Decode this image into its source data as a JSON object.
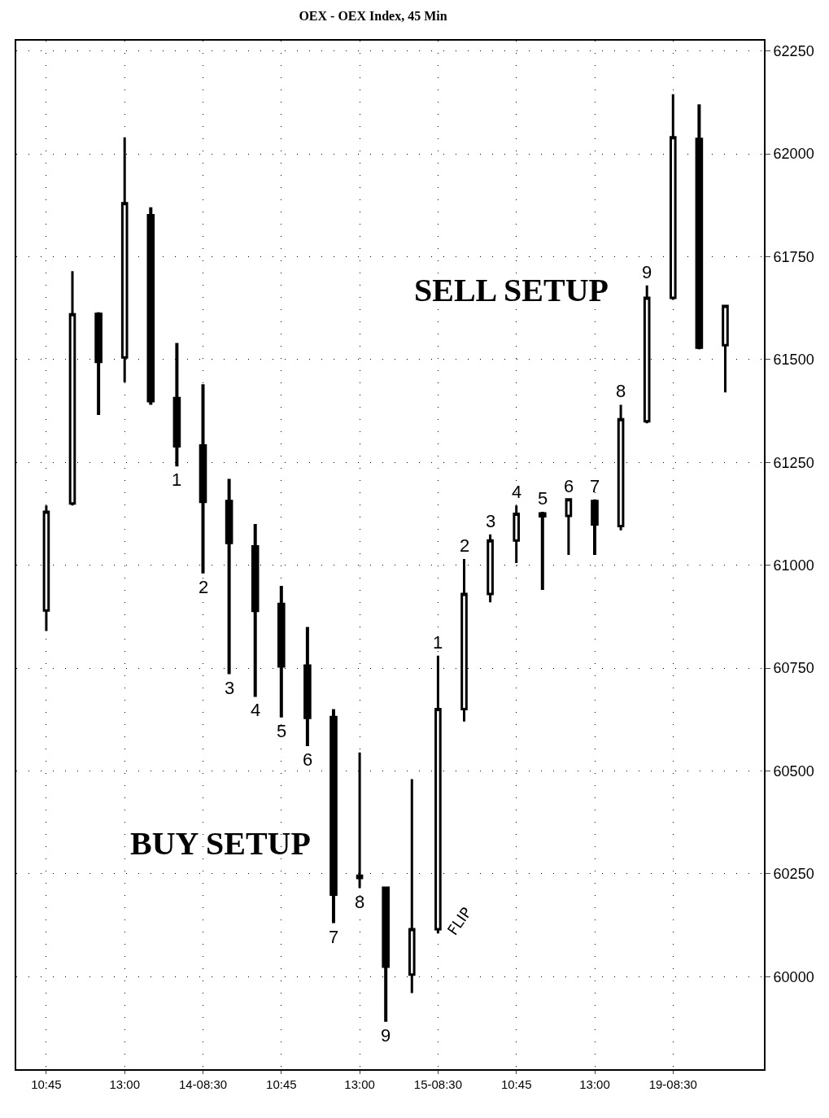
{
  "chart_data": {
    "type": "candlestick",
    "title": "OEX - OEX Index, 45 Min",
    "categories": [
      "10:45",
      null,
      null,
      "13:00",
      null,
      null,
      "14-08:30",
      null,
      null,
      "10:45",
      null,
      null,
      "13:00",
      null,
      null,
      "15-08:30",
      null,
      null,
      "10:45",
      null,
      null,
      "13:00",
      null,
      null,
      "19-08:30",
      null,
      null
    ],
    "ohlc": [
      [
        60890,
        61145,
        60840,
        61130
      ],
      [
        61150,
        61715,
        61145,
        61610
      ],
      [
        61610,
        61615,
        61365,
        61495
      ],
      [
        61505,
        62040,
        61445,
        61880
      ],
      [
        61850,
        61870,
        61390,
        61400
      ],
      [
        61405,
        61540,
        61240,
        61290
      ],
      [
        61290,
        61440,
        60980,
        61155
      ],
      [
        61155,
        61210,
        60735,
        61055
      ],
      [
        61045,
        61100,
        60680,
        60890
      ],
      [
        60905,
        60950,
        60630,
        60755
      ],
      [
        60755,
        60850,
        60560,
        60630
      ],
      [
        60630,
        60650,
        60130,
        60200
      ],
      [
        60240,
        60545,
        60215,
        60245
      ],
      [
        60215,
        60215,
        59890,
        60025
      ],
      [
        60005,
        60480,
        59960,
        60115
      ],
      [
        60115,
        60780,
        60105,
        60650
      ],
      [
        60650,
        61015,
        60620,
        60930
      ],
      [
        60930,
        61075,
        60910,
        61060
      ],
      [
        61060,
        61145,
        61005,
        61125
      ],
      [
        61125,
        61130,
        60940,
        61120
      ],
      [
        61120,
        61160,
        61025,
        61160
      ],
      [
        61155,
        61160,
        61025,
        61100
      ],
      [
        61095,
        61390,
        61085,
        61355
      ],
      [
        61350,
        61680,
        61345,
        61650
      ],
      [
        61650,
        62145,
        61645,
        62040
      ],
      [
        62035,
        62120,
        61525,
        61530
      ],
      [
        61535,
        61630,
        61420,
        61630
      ]
    ],
    "color": "#000000",
    "value_labels": [
      null,
      null,
      null,
      null,
      null,
      "1",
      "2",
      "3",
      "4",
      "5",
      "6",
      "7",
      "8",
      "9",
      null,
      "1",
      "2",
      "3",
      "4",
      "5",
      "6",
      "7",
      "8",
      "9",
      null,
      null,
      null
    ],
    "ylim": [
      59775,
      62275
    ],
    "yticks": [
      60000,
      60250,
      60500,
      60750,
      61000,
      61250,
      61500,
      61750,
      62000,
      62250
    ],
    "grid": true,
    "annotations": [
      "SELL SETUP",
      "BUY SETUP",
      "FLIP"
    ]
  }
}
